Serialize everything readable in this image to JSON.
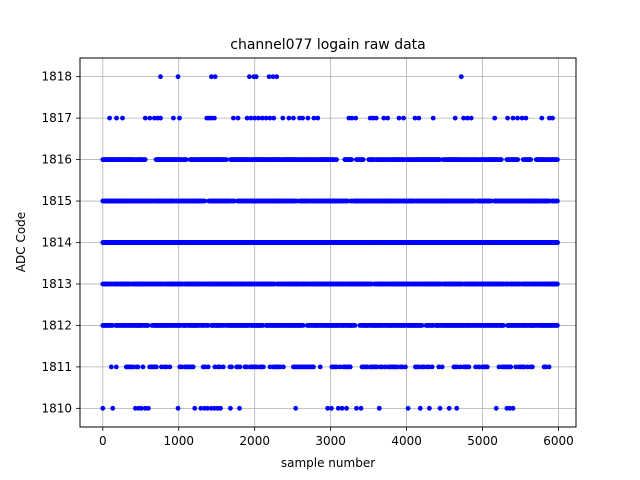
{
  "chart_data": {
    "type": "scatter",
    "title": "channel077 logain raw data",
    "xlabel": "sample number",
    "ylabel": "ADC Code",
    "xlim": [
      -300,
      6230
    ],
    "ylim": [
      1809.55,
      1818.45
    ],
    "xticks": [
      0,
      1000,
      2000,
      3000,
      4000,
      5000,
      6000
    ],
    "yticks": [
      1810,
      1811,
      1812,
      1813,
      1814,
      1815,
      1816,
      1817,
      1818
    ],
    "grid": true,
    "marker_color": "#0000ff",
    "series": [
      {
        "points_by_level": [
          {
            "y": 1818,
            "x": [
              760,
              990,
              1430,
              1480,
              1930,
              1990,
              2020,
              2190,
              2240,
              2290,
              4720
            ]
          },
          {
            "y": 1817,
            "x": [
              90,
              180,
              260,
              560,
              620,
              680,
              720,
              760,
              930,
              1010,
              1370,
              1400,
              1430,
              1470,
              1720,
              1780,
              1900,
              1950,
              2000,
              2050,
              2100,
              2150,
              2200,
              2250,
              2370,
              2450,
              2510,
              2590,
              2630,
              2700,
              2780,
              2830,
              3240,
              3280,
              3330,
              3520,
              3560,
              3600,
              3700,
              3750,
              3900,
              3960,
              4110,
              4160,
              4350,
              4640,
              4750,
              4800,
              4850,
              5160,
              5330,
              5400,
              5460,
              5520,
              5570,
              5780,
              5880,
              5920
            ]
          },
          {
            "y": 1816,
            "x": [
              0,
              5990
            ],
            "density": "dense",
            "gaps": [
              [
                560,
                690
              ],
              [
                1100,
                1150
              ],
              [
                1630,
                1680
              ],
              [
                3080,
                3180
              ],
              [
                3280,
                3330
              ],
              [
                3440,
                3500
              ],
              [
                4440,
                4480
              ],
              [
                5250,
                5310
              ],
              [
                5470,
                5530
              ],
              [
                5640,
                5700
              ]
            ]
          },
          {
            "y": 1815,
            "x": [
              0,
              5990
            ],
            "density": "dense",
            "gaps": [
              [
                1350,
                1380
              ],
              [
                2560,
                2590
              ],
              [
                3230,
                3260
              ],
              [
                4900,
                4930
              ]
            ]
          },
          {
            "y": 1814,
            "x": [
              0,
              5990
            ],
            "density": "solid",
            "gaps": []
          },
          {
            "y": 1813,
            "x": [
              0,
              5990
            ],
            "density": "dense",
            "gaps": [
              [
                2260,
                2290
              ],
              [
                3540,
                3570
              ],
              [
                4740,
                4760
              ]
            ]
          },
          {
            "y": 1812,
            "x": [
              0,
              5990
            ],
            "density": "dense",
            "gaps": [
              [
                130,
                170
              ],
              [
                600,
                640
              ],
              [
                1390,
                1430
              ],
              [
                2110,
                2150
              ],
              [
                2640,
                2690
              ],
              [
                3330,
                3380
              ],
              [
                4210,
                4250
              ],
              [
                5280,
                5320
              ]
            ]
          },
          {
            "y": 1811,
            "x": [
              90,
              5920
            ],
            "density": "sparse",
            "gaps": [
              [
                200,
                290
              ],
              [
                900,
                1000
              ],
              [
                1200,
                1290
              ],
              [
                1400,
                1460
              ],
              [
                2400,
                2490
              ],
              [
                2900,
                2980
              ],
              [
                3300,
                3390
              ],
              [
                4000,
                4090
              ],
              [
                4500,
                4590
              ],
              [
                5100,
                5190
              ],
              [
                5700,
                5790
              ]
            ]
          },
          {
            "y": 1810,
            "x": [
              0,
              130,
              430,
              470,
              510,
              560,
              600,
              990,
              1210,
              1290,
              1340,
              1380,
              1430,
              1470,
              1510,
              1550,
              1680,
              1800,
              2540,
              2960,
              3010,
              3100,
              3150,
              3210,
              3340,
              3400,
              3640,
              4020,
              4180,
              4300,
              4440,
              4560,
              4660,
              5180,
              5320,
              5360,
              5400
            ]
          }
        ]
      }
    ]
  }
}
